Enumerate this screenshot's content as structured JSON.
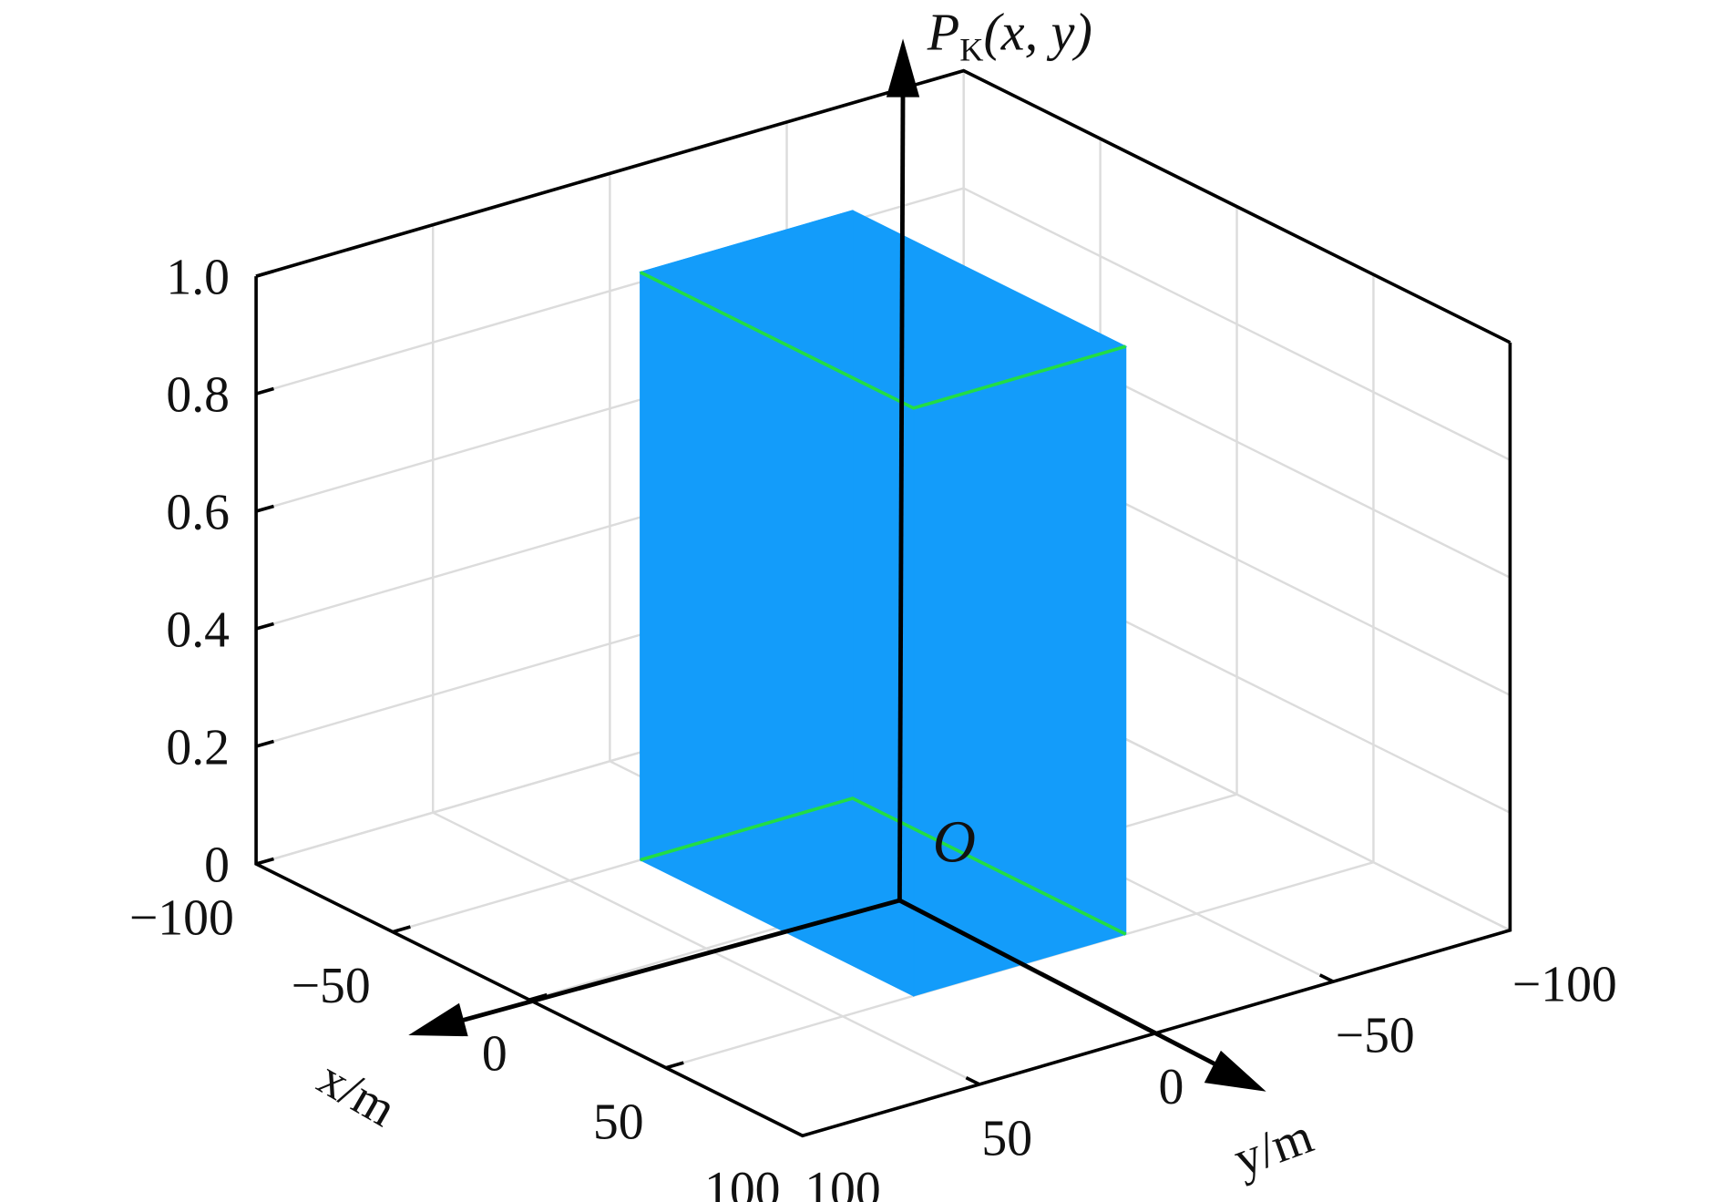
{
  "chart_data": {
    "type": "bar3d",
    "z_label": {
      "main": "P",
      "sub": "K",
      "args": "(x, y)"
    },
    "x_label": "x/m",
    "y_label": "y/m",
    "origin_label": "O",
    "xlim": [
      -100,
      100
    ],
    "xticks": [
      {
        "value": -100,
        "label": "−100"
      },
      {
        "value": -50,
        "label": "−50"
      },
      0,
      50,
      100
    ],
    "ylim": [
      -100,
      100
    ],
    "yticks": [
      {
        "value": -100,
        "label": "−100"
      },
      {
        "value": -50,
        "label": "−50"
      },
      0,
      50,
      100
    ],
    "zlim": [
      0,
      1
    ],
    "zticks": [
      0,
      0.2,
      0.4,
      0.6,
      0.8,
      {
        "value": 1,
        "label": "1.0"
      }
    ],
    "grid": true,
    "box": {
      "x": [
        -50,
        50
      ],
      "y": [
        -30,
        30
      ],
      "value": 1
    },
    "color": "#139cfa",
    "edge_color": "#22dd44"
  }
}
